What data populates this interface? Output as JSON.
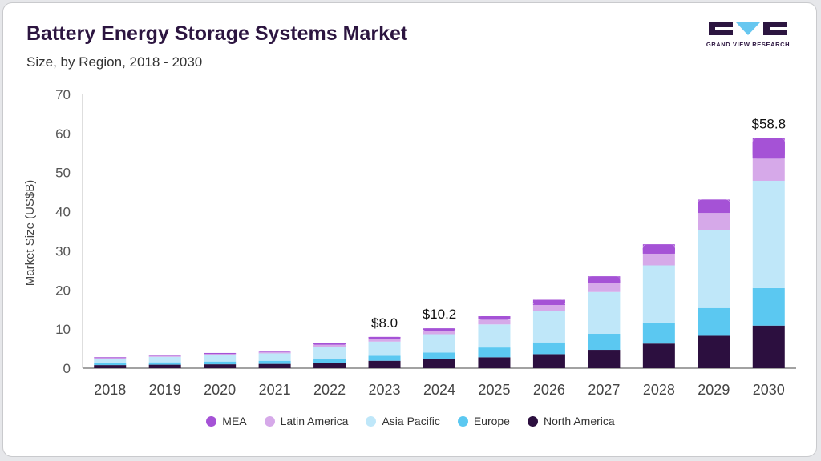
{
  "title": "Battery Energy Storage Systems Market",
  "subtitle": "Size, by Region, 2018 - 2030",
  "logo": {
    "text": "GRAND VIEW RESEARCH",
    "icon": "gvr-logo-icon",
    "color": "#2c1540",
    "accent": "#67c7f0"
  },
  "chart_data": {
    "type": "bar",
    "stacked": true,
    "categories": [
      "2018",
      "2019",
      "2020",
      "2021",
      "2022",
      "2023",
      "2024",
      "2025",
      "2026",
      "2027",
      "2028",
      "2029",
      "2030"
    ],
    "ylabel": "Market Size (US$B)",
    "xlabel": "",
    "ylim": [
      0,
      70
    ],
    "yticks": [
      0,
      10,
      20,
      30,
      40,
      50,
      60,
      70
    ],
    "grid": false,
    "legend_position": "bottom",
    "series": [
      {
        "name": "North America",
        "color": "#2c0f3f",
        "values": [
          0.8,
          0.9,
          1.0,
          1.1,
          1.4,
          1.9,
          2.3,
          2.8,
          3.6,
          4.7,
          6.3,
          8.3,
          10.9
        ]
      },
      {
        "name": "Europe",
        "color": "#5bc8f1",
        "values": [
          0.5,
          0.6,
          0.7,
          0.8,
          1.0,
          1.3,
          1.7,
          2.5,
          3.0,
          4.1,
          5.4,
          7.1,
          9.6
        ]
      },
      {
        "name": "Asia Pacific",
        "color": "#bfe7f9",
        "values": [
          1.0,
          1.4,
          1.6,
          1.9,
          3.0,
          3.6,
          4.7,
          5.9,
          8.0,
          10.7,
          14.6,
          20.0,
          27.4
        ]
      },
      {
        "name": "Latin America",
        "color": "#d6a9e9",
        "values": [
          0.3,
          0.3,
          0.35,
          0.4,
          0.6,
          0.7,
          0.9,
          1.2,
          1.6,
          2.3,
          3.0,
          4.3,
          5.7
        ]
      },
      {
        "name": "MEA",
        "color": "#a552d6",
        "values": [
          0.2,
          0.2,
          0.25,
          0.3,
          0.5,
          0.5,
          0.6,
          0.9,
          1.3,
          1.7,
          2.4,
          3.4,
          5.2
        ]
      }
    ],
    "annotations": [
      {
        "category": "2023",
        "text": "$8.0"
      },
      {
        "category": "2024",
        "text": "$10.2"
      },
      {
        "category": "2030",
        "text": "$58.8"
      }
    ]
  }
}
